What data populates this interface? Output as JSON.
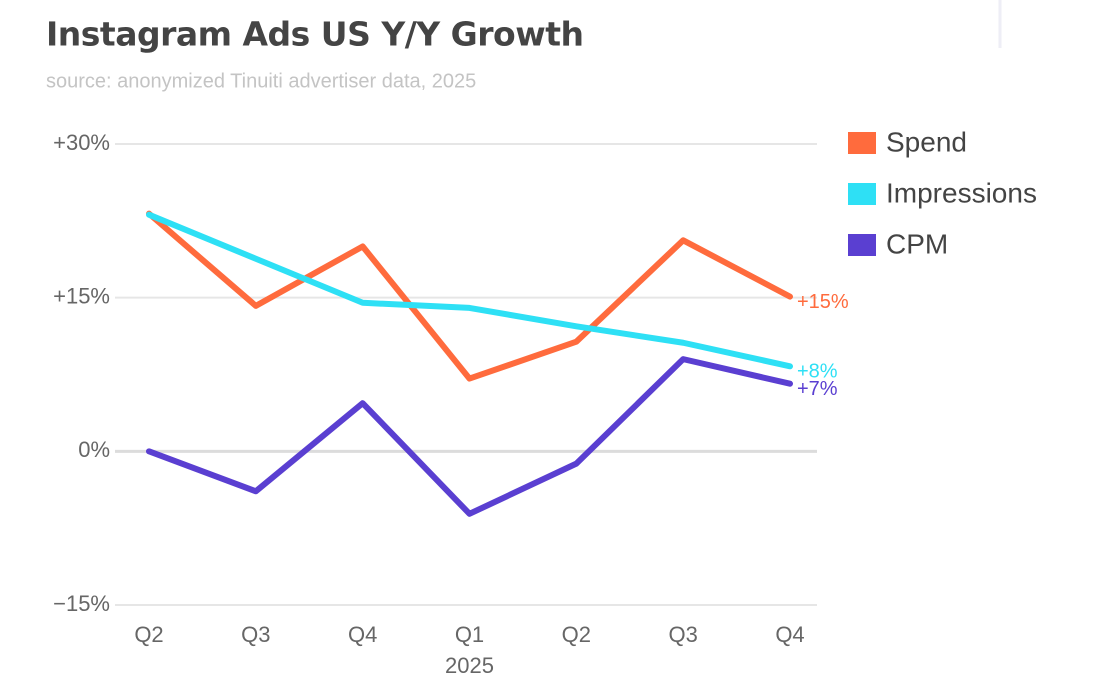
{
  "chart_data": {
    "type": "line",
    "title": "Instagram Ads US Y/Y Growth",
    "subtitle": "source: anonymized Tinuiti advertiser data, 2025",
    "categories": [
      "Q2",
      "Q3",
      "Q4",
      "Q1",
      "Q2",
      "Q3",
      "Q4"
    ],
    "category_years": [
      null,
      null,
      null,
      "2025",
      null,
      null,
      null
    ],
    "ylim": [
      -15,
      30
    ],
    "yticks": [
      {
        "value": 30,
        "label": "+30%"
      },
      {
        "value": 15,
        "label": "+15%"
      },
      {
        "value": 0,
        "label": "0%"
      },
      {
        "value": -15,
        "label": "−15%"
      }
    ],
    "grid": true,
    "legend": "right",
    "series": [
      {
        "name": "Spend",
        "color": "#ff6b3d",
        "values": [
          23.2,
          14.2,
          20.0,
          7.1,
          10.7,
          20.6,
          15.1
        ],
        "value_labels": [
          null,
          null,
          null,
          null,
          null,
          null,
          "+15%"
        ]
      },
      {
        "name": "Impressions",
        "color": "#2ee0f5",
        "values": [
          23.1,
          18.8,
          14.5,
          14.0,
          12.2,
          10.6,
          8.3
        ],
        "value_labels": [
          null,
          null,
          null,
          null,
          null,
          null,
          "+8%"
        ]
      },
      {
        "name": "CPM",
        "color": "#5a3fd1",
        "values": [
          0,
          -3.9,
          4.7,
          -6.1,
          -1.2,
          9.0,
          6.6
        ],
        "value_labels": [
          null,
          null,
          null,
          null,
          null,
          null,
          "+7%"
        ]
      }
    ]
  }
}
